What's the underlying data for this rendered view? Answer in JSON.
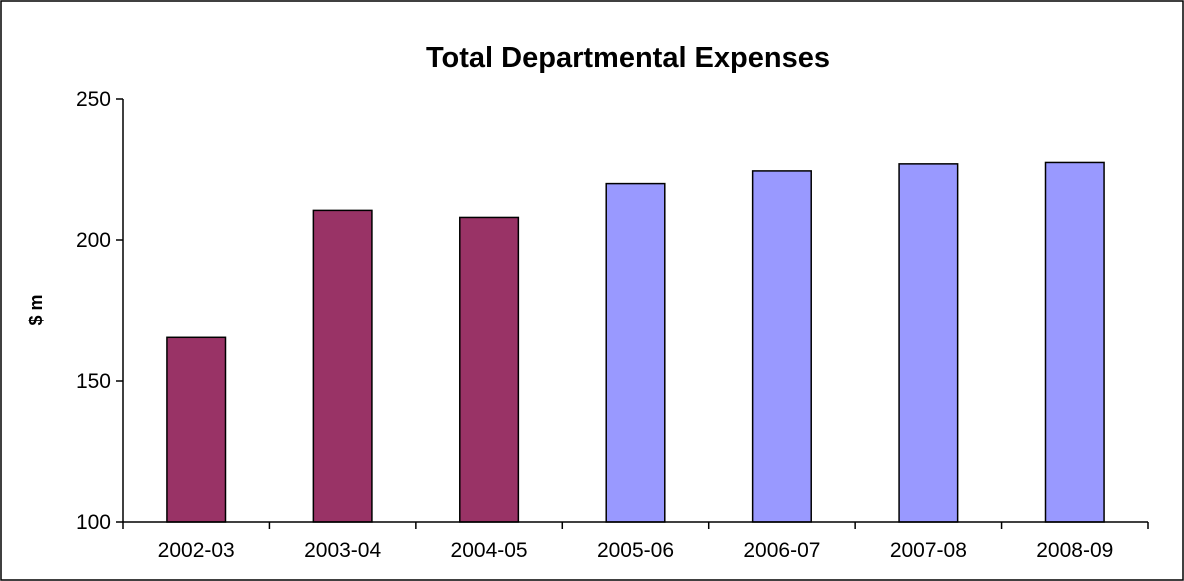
{
  "chart_data": {
    "type": "bar",
    "title": "Total Departmental Expenses",
    "xlabel": "",
    "ylabel": "$ m",
    "ylim": [
      100,
      250
    ],
    "yticks": [
      100,
      150,
      200,
      250
    ],
    "grid": false,
    "legend": "none",
    "categories": [
      "2002-03",
      "2003-04",
      "2004-05",
      "2005-06",
      "2006-07",
      "2007-08",
      "2008-09"
    ],
    "values": [
      165.5,
      210.5,
      208,
      220,
      224.5,
      227,
      227.5
    ],
    "colors": [
      "#993366",
      "#993366",
      "#993366",
      "#9999ff",
      "#9999ff",
      "#9999ff",
      "#9999ff"
    ]
  }
}
